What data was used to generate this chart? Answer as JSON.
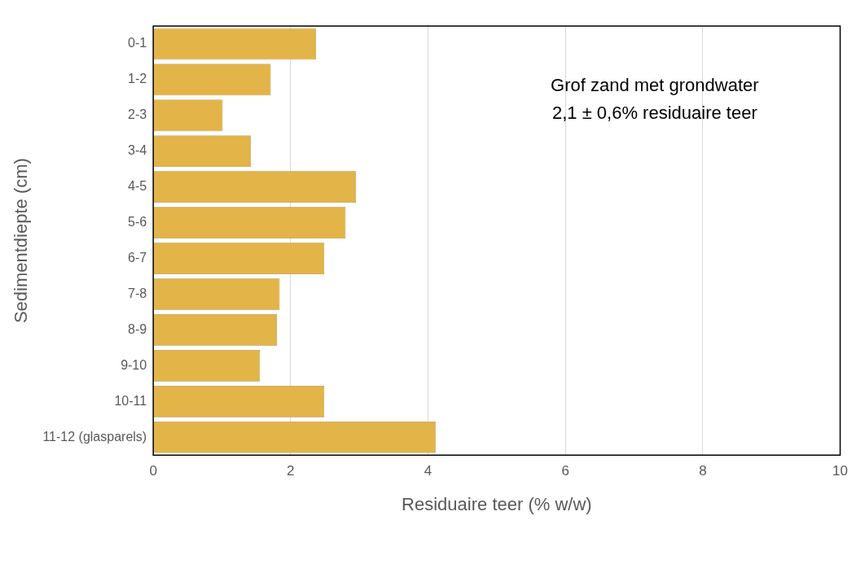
{
  "chart_data": {
    "type": "bar",
    "orientation": "horizontal",
    "categories": [
      "0-1",
      "1-2",
      "2-3",
      "3-4",
      "4-5",
      "5-6",
      "6-7",
      "7-8",
      "8-9",
      "9-10",
      "10-11",
      "11-12 (glasparels)"
    ],
    "values": [
      2.37,
      1.71,
      1.01,
      1.42,
      2.95,
      2.8,
      2.49,
      1.84,
      1.8,
      1.55,
      2.49,
      4.11
    ],
    "color": "#e3b448",
    "xlabel": "Residuaire teer (% w/w)",
    "ylabel": "Sedimentdiepte (cm)",
    "xlim": [
      0,
      10
    ],
    "xticks": [
      0,
      2,
      4,
      6,
      8,
      10
    ],
    "grid": "x",
    "legend": false,
    "annotations": [
      "Grof zand met grondwater",
      "2,1 ± 0,6% residuaire teer"
    ]
  }
}
